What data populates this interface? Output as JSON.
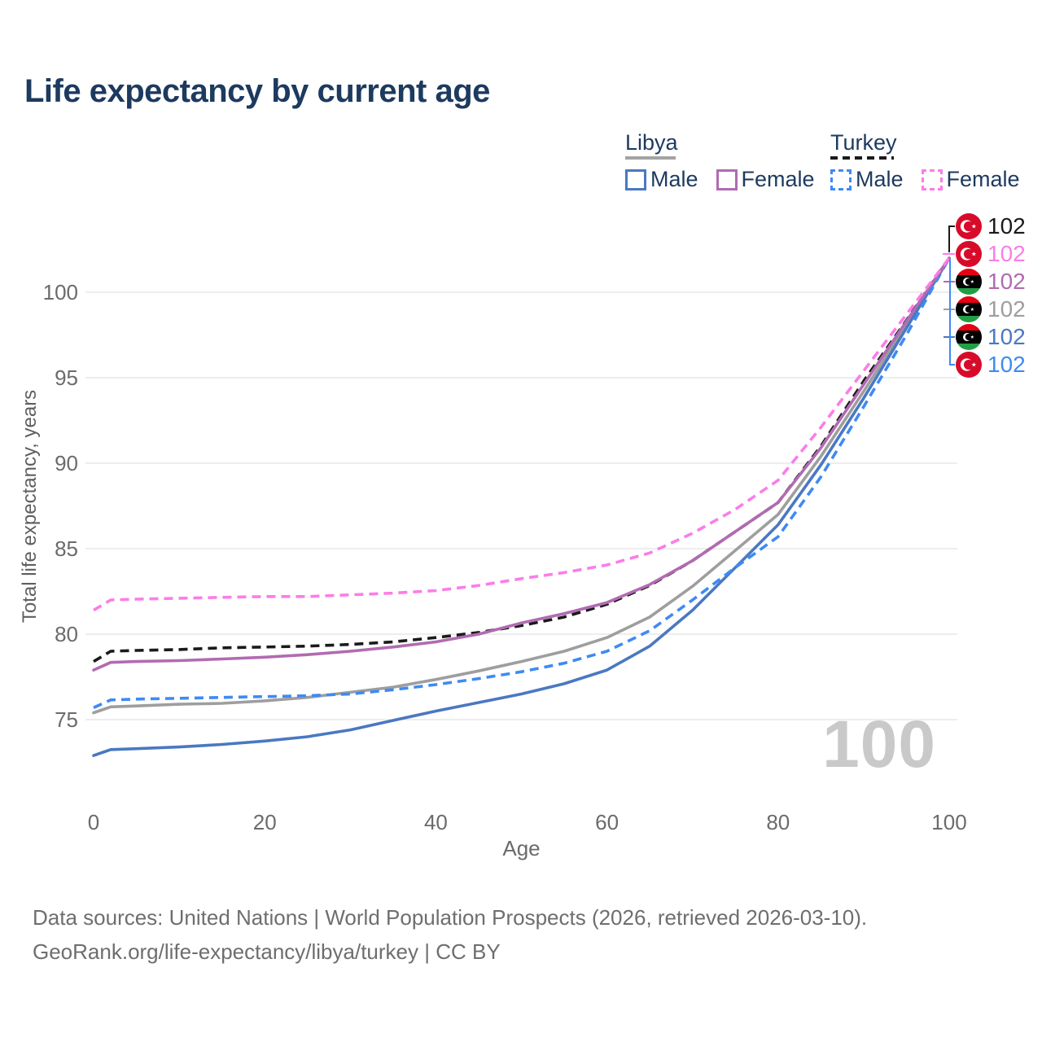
{
  "title": "Life expectancy by current age",
  "legend": {
    "groups": [
      {
        "country": "Libya",
        "line_style": "solid",
        "underline_color": "#a3a3a3",
        "items": [
          {
            "label": "Male",
            "color": "#4a78c2"
          },
          {
            "label": "Female",
            "color": "#b16bb1"
          }
        ]
      },
      {
        "country": "Turkey",
        "line_style": "dashed",
        "underline_color": "#1a1a1a",
        "items": [
          {
            "label": "Male",
            "color": "#3e8af4"
          },
          {
            "label": "Female",
            "color": "#fb7de8"
          }
        ]
      }
    ]
  },
  "chart_data": {
    "type": "line",
    "title": "Life expectancy by current age",
    "xlabel": "Age",
    "ylabel": "Total life expectancy, years",
    "x_ticks": [
      0,
      20,
      40,
      60,
      80,
      100
    ],
    "y_ticks": [
      75,
      80,
      85,
      90,
      95,
      100
    ],
    "xlim": [
      0,
      100
    ],
    "ylim": [
      72.5,
      103
    ],
    "grid": "horizontal",
    "legend_position": "top-right",
    "x": [
      0,
      2,
      5,
      10,
      15,
      20,
      25,
      30,
      35,
      40,
      45,
      50,
      55,
      60,
      65,
      70,
      75,
      80,
      85,
      90,
      95,
      100
    ],
    "series": [
      {
        "name": "Libya (both sexes)",
        "country": "Libya",
        "sex": "Both sexes",
        "color": "#9e9e9e",
        "dashed": false,
        "values": [
          75.4,
          75.75,
          75.8,
          75.9,
          75.95,
          76.1,
          76.3,
          76.6,
          76.9,
          77.35,
          77.85,
          78.4,
          79.0,
          79.8,
          81.0,
          82.8,
          84.9,
          87.0,
          90.4,
          94.2,
          98.1,
          102
        ]
      },
      {
        "name": "Libya Male",
        "country": "Libya",
        "sex": "Male",
        "color": "#4a78c2",
        "dashed": false,
        "values": [
          72.9,
          73.25,
          73.3,
          73.4,
          73.55,
          73.75,
          74.0,
          74.4,
          74.95,
          75.5,
          76.0,
          76.5,
          77.1,
          77.9,
          79.3,
          81.4,
          83.9,
          86.4,
          89.9,
          93.8,
          97.9,
          102
        ]
      },
      {
        "name": "Turkey Male",
        "country": "Turkey",
        "sex": "Male",
        "color": "#3e8af4",
        "dashed": true,
        "values": [
          75.7,
          76.15,
          76.2,
          76.25,
          76.3,
          76.35,
          76.4,
          76.5,
          76.75,
          77.05,
          77.4,
          77.8,
          78.3,
          79.0,
          80.2,
          82.0,
          83.9,
          85.7,
          89.2,
          93.3,
          97.5,
          102
        ]
      },
      {
        "name": "Turkey (both sexes)",
        "country": "Turkey",
        "sex": "Both sexes",
        "color": "#1a1a1a",
        "dashed": true,
        "values": [
          78.4,
          79.0,
          79.05,
          79.1,
          79.2,
          79.25,
          79.3,
          79.4,
          79.55,
          79.8,
          80.1,
          80.5,
          81.0,
          81.75,
          82.85,
          84.3,
          86.0,
          87.7,
          91.0,
          94.8,
          98.35,
          102
        ]
      },
      {
        "name": "Libya Female",
        "country": "Libya",
        "sex": "Female",
        "color": "#b16bb1",
        "dashed": false,
        "values": [
          77.9,
          78.35,
          78.4,
          78.45,
          78.55,
          78.65,
          78.8,
          79.0,
          79.25,
          79.55,
          80.0,
          80.65,
          81.2,
          81.85,
          82.9,
          84.3,
          86.0,
          87.7,
          90.9,
          94.6,
          98.3,
          102
        ]
      },
      {
        "name": "Turkey Female",
        "country": "Turkey",
        "sex": "Female",
        "color": "#fb7de8",
        "dashed": true,
        "values": [
          81.4,
          82.0,
          82.05,
          82.1,
          82.15,
          82.2,
          82.2,
          82.3,
          82.4,
          82.55,
          82.85,
          83.25,
          83.6,
          84.05,
          84.75,
          85.9,
          87.3,
          89.0,
          92.1,
          95.4,
          98.7,
          102
        ]
      }
    ]
  },
  "end_labels": [
    {
      "flag": "turkey",
      "series": "Turkey (both sexes)",
      "value": "102",
      "color": "#1a1a1a"
    },
    {
      "flag": "turkey",
      "series": "Turkey Female",
      "value": "102",
      "color": "#fb7de8"
    },
    {
      "flag": "libya",
      "series": "Libya Female",
      "value": "102",
      "color": "#b16bb1"
    },
    {
      "flag": "libya",
      "series": "Libya (both sexes)",
      "value": "102",
      "color": "#9e9e9e"
    },
    {
      "flag": "libya",
      "series": "Libya Male",
      "value": "102",
      "color": "#4a78c2"
    },
    {
      "flag": "turkey",
      "series": "Turkey Male",
      "value": "102",
      "color": "#3e8af4"
    }
  ],
  "watermark": {
    "text": "100",
    "color": "#c9c9c9"
  },
  "footer": {
    "line1": "Data sources: United Nations | World Population Prospects (2026, retrieved 2026-03-10).",
    "line2": "GeoRank.org/life-expectancy/libya/turkey | CC BY"
  }
}
